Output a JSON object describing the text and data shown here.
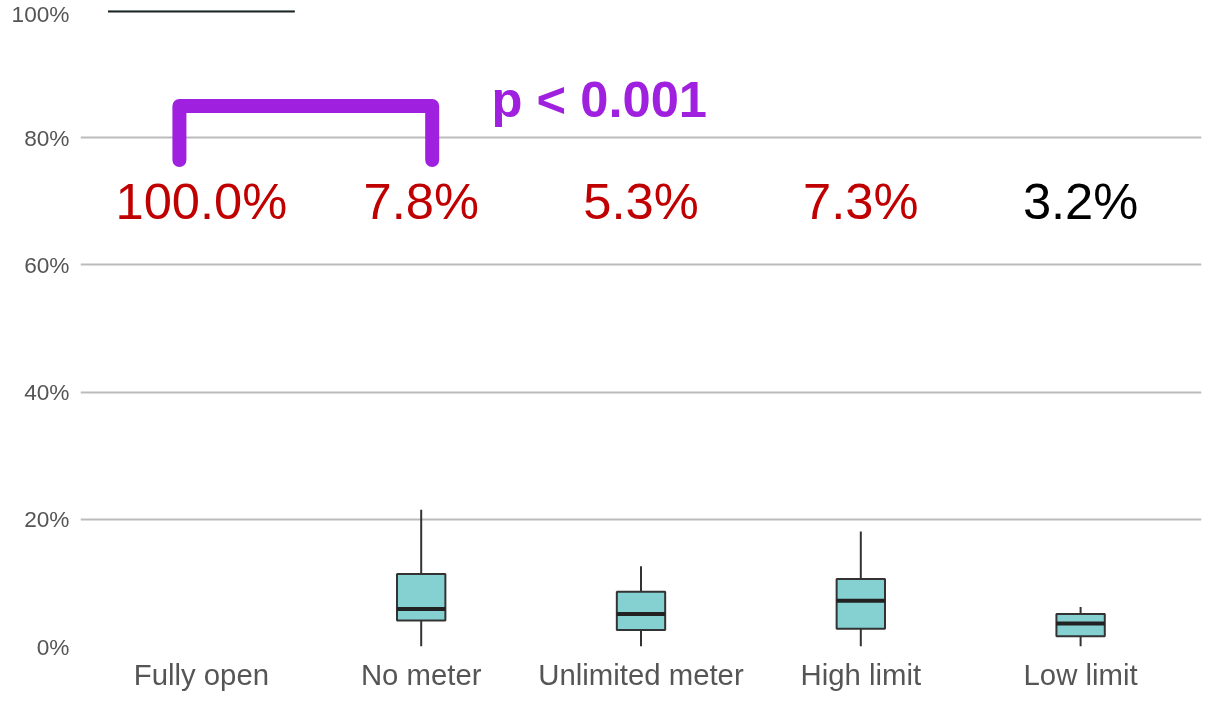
{
  "chart_data": {
    "type": "box",
    "categories": [
      "Fully open",
      "No meter",
      "Unlimited meter",
      "High limit",
      "Low limit"
    ],
    "series": [
      {
        "color": "#85d1d1",
        "boxes": [
          {
            "low": 100,
            "q1": 100,
            "median": 100,
            "q3": 100,
            "high": 100
          },
          {
            "low": 0,
            "q1": 4.1,
            "median": 5.9,
            "q3": 11.4,
            "high": 21.5
          },
          {
            "low": 0,
            "q1": 2.6,
            "median": 5.1,
            "q3": 8.6,
            "high": 12.6
          },
          {
            "low": 0,
            "q1": 2.8,
            "median": 7.2,
            "q3": 10.6,
            "high": 18.1
          },
          {
            "low": 0,
            "q1": 1.6,
            "median": 3.6,
            "q3": 5.1,
            "high": 6.2
          }
        ]
      }
    ],
    "ylim": [
      0,
      100
    ],
    "yticks": [
      {
        "value": 0,
        "label": "0%"
      },
      {
        "value": 20,
        "label": "20%"
      },
      {
        "value": 40,
        "label": "40%"
      },
      {
        "value": 60,
        "label": "60%"
      },
      {
        "value": 80,
        "label": "80%"
      },
      {
        "value": 100,
        "label": "100%"
      }
    ],
    "grid": "y",
    "annotations": [
      "100.0%",
      "7.8%",
      "5.3%",
      "7.3%",
      "3.2%",
      "p < 0.001"
    ]
  }
}
